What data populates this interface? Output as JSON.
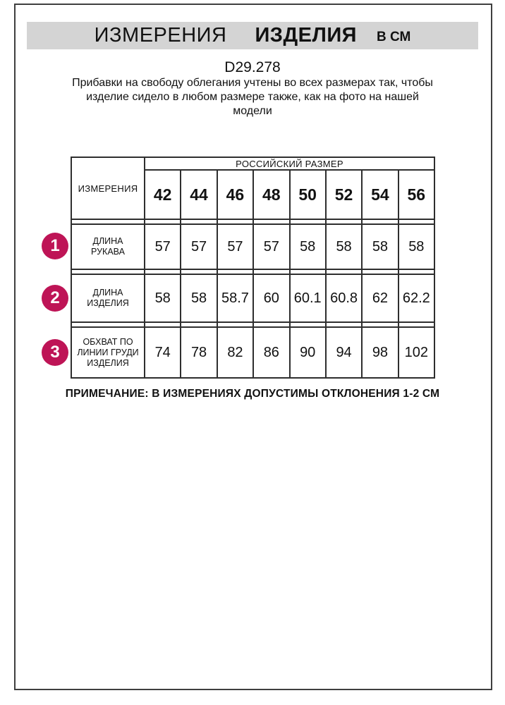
{
  "header": {
    "title_part1": "ИЗМЕРЕНИЯ",
    "title_part2": "ИЗДЕЛИЯ",
    "title_unit": "В СМ"
  },
  "intro": {
    "product_code": "D29.278",
    "description_lines": [
      "Прибавки на свободу облегания учтены во всех размерах так, чтобы",
      "изделие сидело в любом размере также, как на фото на нашей",
      "модели"
    ]
  },
  "table": {
    "corner_header": "ИЗМЕРЕНИЯ",
    "group_header": "РОССИЙСКИЙ РАЗМЕР",
    "sizes": [
      "42",
      "44",
      "46",
      "48",
      "50",
      "52",
      "54",
      "56"
    ],
    "rows": [
      {
        "badge": "1",
        "label": "ДЛИНА РУКАВА",
        "values": [
          "57",
          "57",
          "57",
          "57",
          "58",
          "58",
          "58",
          "58"
        ]
      },
      {
        "badge": "2",
        "label": "ДЛИНА ИЗДЕЛИЯ",
        "values": [
          "58",
          "58",
          "58.7",
          "60",
          "60.1",
          "60.8",
          "62",
          "62.2"
        ]
      },
      {
        "badge": "3",
        "label": "ОБХВАТ ПО ЛИНИИ ГРУДИ ИЗДЕЛИЯ",
        "values": [
          "74",
          "78",
          "82",
          "86",
          "90",
          "94",
          "98",
          "102"
        ]
      }
    ]
  },
  "footer": {
    "note": "ПРИМЕЧАНИЕ: В ИЗМЕРЕНИЯХ ДОПУСТИМЫ ОТКЛОНЕНИЯ 1-2 СМ"
  },
  "colors": {
    "badge": "#be1456",
    "band": "#d4d4d4",
    "frame_border": "#3f3f3f",
    "table_border": "#2e2e2e"
  }
}
